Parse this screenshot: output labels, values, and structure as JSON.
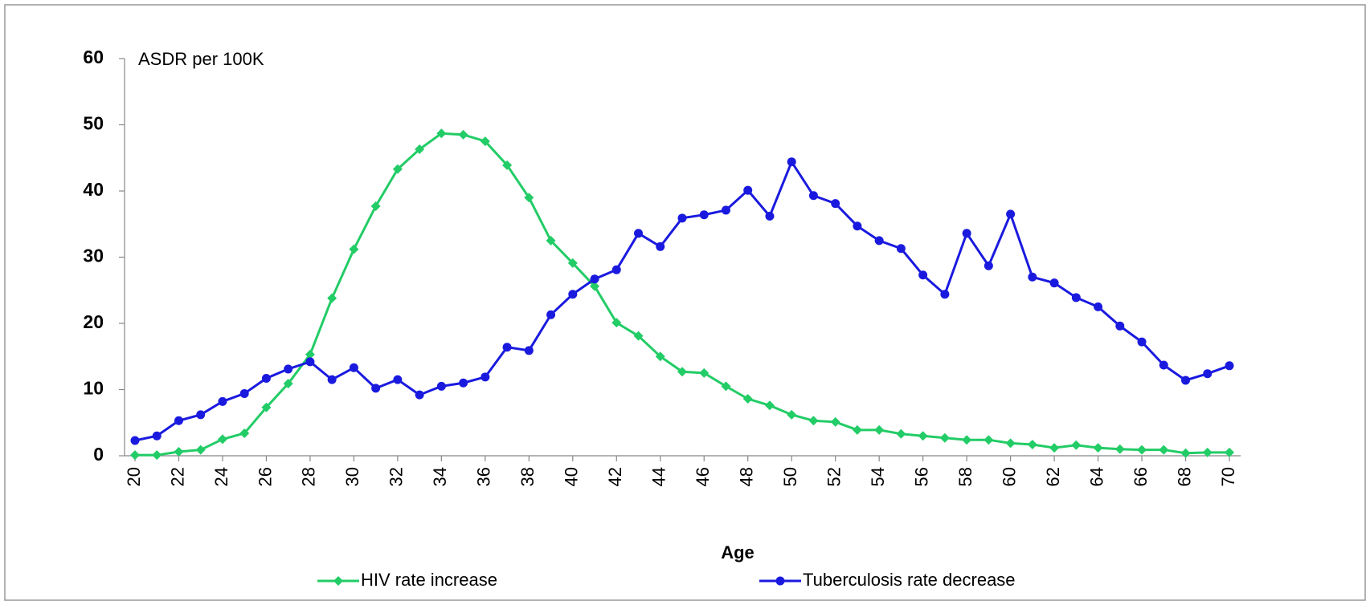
{
  "chart_data": {
    "type": "line",
    "ylabel": "ASDR per 100K",
    "xlabel": "Age",
    "x": [
      20,
      21,
      22,
      23,
      24,
      25,
      26,
      27,
      28,
      29,
      30,
      31,
      32,
      33,
      34,
      35,
      36,
      37,
      38,
      39,
      40,
      41,
      42,
      43,
      44,
      45,
      46,
      47,
      48,
      49,
      50,
      51,
      52,
      53,
      54,
      55,
      56,
      57,
      58,
      59,
      60,
      61,
      62,
      63,
      64,
      65,
      66,
      67,
      68,
      69,
      70
    ],
    "series": [
      {
        "name": "HIV rate increase",
        "color": "#22cc66",
        "marker": "diamond",
        "values": [
          0.1,
          0.1,
          0.6,
          0.9,
          2.5,
          3.4,
          7.3,
          10.9,
          15.3,
          23.8,
          31.2,
          37.7,
          43.3,
          46.3,
          48.7,
          48.5,
          47.5,
          43.9,
          39.0,
          32.5,
          29.1,
          25.6,
          20.1,
          18.1,
          15.0,
          12.7,
          12.5,
          10.5,
          8.6,
          7.6,
          6.2,
          5.3,
          5.1,
          3.9,
          3.9,
          3.3,
          3.0,
          2.7,
          2.4,
          2.4,
          1.9,
          1.7,
          1.2,
          1.6,
          1.2,
          1.0,
          0.9,
          0.9,
          0.4,
          0.5,
          0.5
        ]
      },
      {
        "name": "Tuberculosis rate decrease",
        "color": "#1a1adf",
        "marker": "circle",
        "values": [
          2.3,
          3.0,
          5.3,
          6.2,
          8.2,
          9.4,
          11.7,
          13.1,
          14.2,
          11.5,
          13.3,
          10.2,
          11.5,
          9.2,
          10.5,
          11.0,
          11.9,
          16.4,
          15.9,
          21.3,
          24.4,
          26.7,
          28.1,
          33.6,
          31.6,
          35.9,
          36.4,
          37.1,
          40.1,
          36.2,
          44.4,
          39.3,
          38.1,
          34.7,
          32.5,
          31.3,
          27.3,
          24.4,
          33.6,
          28.7,
          36.5,
          27.0,
          26.1,
          23.9,
          22.5,
          19.6,
          17.2,
          13.7,
          11.4,
          12.4,
          13.6
        ]
      }
    ],
    "xlim": [
      20,
      70
    ],
    "xticks": [
      20,
      22,
      24,
      26,
      28,
      30,
      32,
      34,
      36,
      38,
      40,
      42,
      44,
      46,
      48,
      50,
      52,
      54,
      56,
      58,
      60,
      62,
      64,
      66,
      68,
      70
    ],
    "ylim": [
      0,
      60
    ],
    "yticks": [
      0,
      10,
      20,
      30,
      40,
      50,
      60
    ],
    "grid": false,
    "legend": "bottom"
  }
}
